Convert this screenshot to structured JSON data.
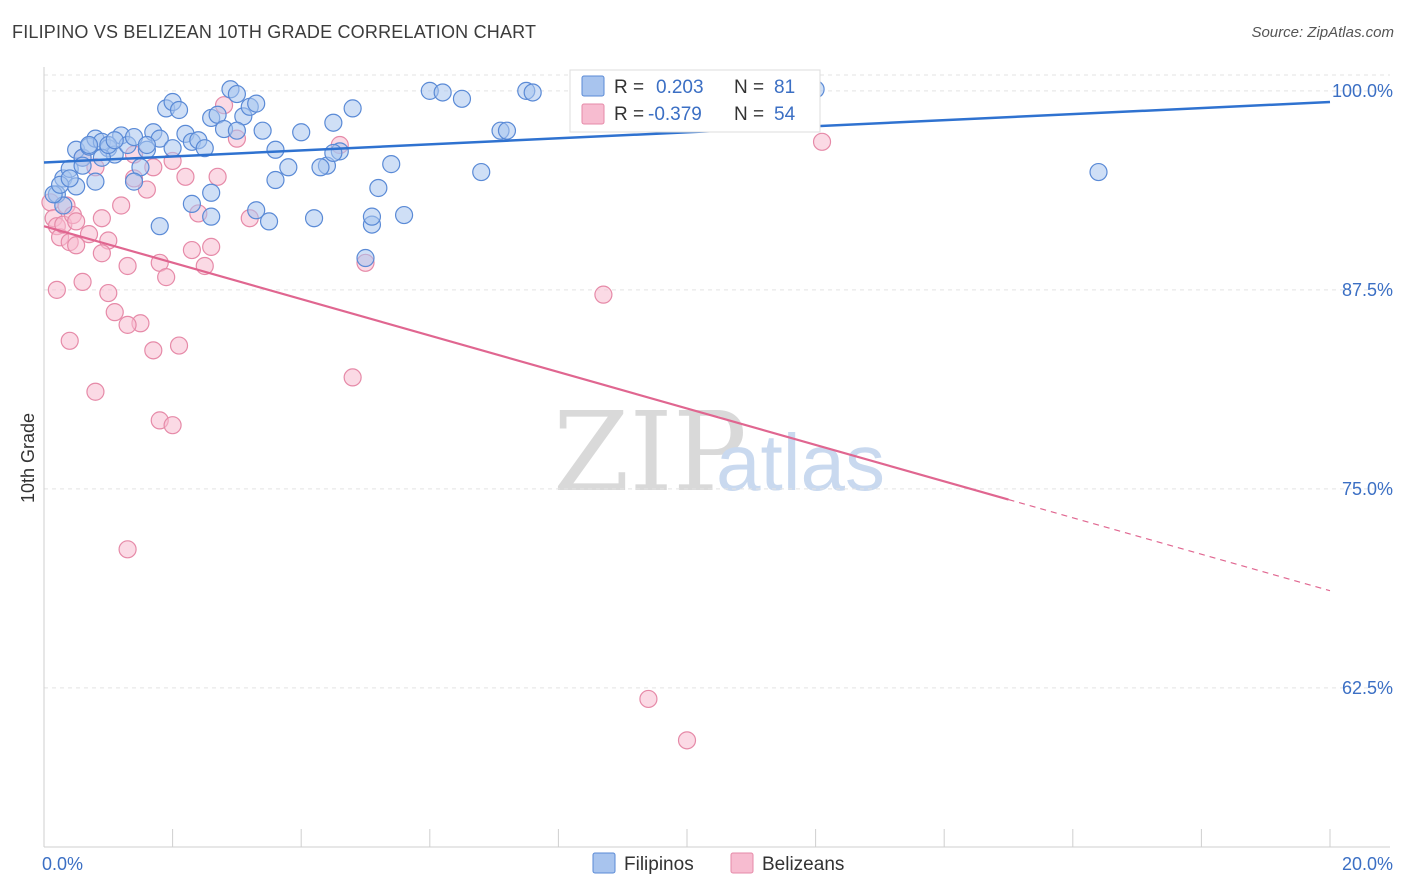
{
  "title": "FILIPINO VS BELIZEAN 10TH GRADE CORRELATION CHART",
  "source": "Source: ZipAtlas.com",
  "watermark": {
    "zip": "ZIP",
    "atlas": "atlas"
  },
  "legend_top": {
    "rows": [
      {
        "r_label": "R =",
        "r_value": "0.203",
        "n_label": "N =",
        "n_value": "81"
      },
      {
        "r_label": "R =",
        "r_value": "-0.379",
        "n_label": "N =",
        "n_value": "54"
      }
    ]
  },
  "legend_bottom": {
    "series": [
      "Filipinos",
      "Belizeans"
    ]
  },
  "colors": {
    "filipino_fill": "#a8c4ee",
    "filipino_stroke": "#5a8ad6",
    "filipino_line": "#2f72d0",
    "belizean_fill": "#f7bcd0",
    "belizean_stroke": "#e68aa8",
    "belizean_line": "#e06690",
    "tick_text": "#3b6fc4",
    "grid": "#e3e3e3"
  },
  "chart_data": {
    "type": "scatter",
    "title": "FILIPINO VS BELIZEAN 10TH GRADE CORRELATION CHART",
    "xlabel": "",
    "ylabel": "10th Grade",
    "xlim": [
      0,
      20
    ],
    "ylim": [
      52.5,
      101.5
    ],
    "x_tick_labels": [
      "0.0%",
      "20.0%"
    ],
    "y_ticks": [
      62.5,
      75.0,
      87.5,
      100.0
    ],
    "y_tick_labels": [
      "62.5%",
      "75.0%",
      "87.5%",
      "100.0%"
    ],
    "grid": true,
    "series": [
      {
        "name": "Filipinos",
        "R": 0.203,
        "N": 81,
        "trend": {
          "x": [
            0,
            20
          ],
          "y": [
            95.5,
            99.3
          ],
          "solid_until": 20
        },
        "points": [
          [
            0.3,
            94.5
          ],
          [
            0.4,
            95.1
          ],
          [
            0.5,
            96.3
          ],
          [
            0.6,
            95.8
          ],
          [
            0.7,
            96.5
          ],
          [
            0.8,
            97.0
          ],
          [
            0.9,
            96.8
          ],
          [
            1.0,
            96.4
          ],
          [
            1.1,
            96.0
          ],
          [
            1.2,
            97.2
          ],
          [
            1.3,
            96.6
          ],
          [
            1.4,
            97.1
          ],
          [
            1.5,
            95.2
          ],
          [
            1.6,
            96.3
          ],
          [
            1.7,
            97.4
          ],
          [
            1.8,
            97.0
          ],
          [
            1.9,
            98.9
          ],
          [
            2.0,
            99.3
          ],
          [
            2.1,
            98.8
          ],
          [
            2.2,
            97.3
          ],
          [
            2.3,
            96.8
          ],
          [
            2.4,
            96.9
          ],
          [
            2.5,
            96.4
          ],
          [
            2.6,
            98.3
          ],
          [
            2.7,
            98.5
          ],
          [
            2.8,
            97.6
          ],
          [
            2.9,
            100.1
          ],
          [
            3.0,
            99.8
          ],
          [
            3.1,
            98.4
          ],
          [
            3.2,
            99.0
          ],
          [
            3.3,
            99.2
          ],
          [
            3.4,
            97.5
          ],
          [
            3.6,
            96.3
          ],
          [
            3.8,
            95.2
          ],
          [
            4.0,
            97.4
          ],
          [
            4.2,
            92.0
          ],
          [
            4.4,
            95.3
          ],
          [
            4.5,
            98.0
          ],
          [
            4.6,
            96.2
          ],
          [
            4.8,
            98.9
          ],
          [
            5.0,
            89.5
          ],
          [
            5.1,
            91.6
          ],
          [
            5.2,
            93.9
          ],
          [
            5.4,
            95.4
          ],
          [
            5.6,
            92.2
          ],
          [
            6.0,
            100.0
          ],
          [
            6.2,
            99.9
          ],
          [
            6.5,
            99.5
          ],
          [
            6.8,
            94.9
          ],
          [
            7.1,
            97.5
          ],
          [
            7.2,
            97.5
          ],
          [
            7.5,
            100.0
          ],
          [
            7.6,
            99.9
          ],
          [
            12.0,
            100.1
          ],
          [
            16.4,
            94.9
          ],
          [
            0.2,
            93.5
          ],
          [
            0.3,
            92.8
          ],
          [
            0.5,
            94.0
          ],
          [
            0.6,
            95.3
          ],
          [
            0.7,
            96.6
          ],
          [
            0.8,
            94.3
          ],
          [
            0.9,
            95.8
          ],
          [
            1.0,
            96.6
          ],
          [
            1.1,
            96.9
          ],
          [
            1.4,
            94.3
          ],
          [
            1.6,
            96.6
          ],
          [
            1.8,
            91.5
          ],
          [
            2.0,
            96.4
          ],
          [
            2.3,
            92.9
          ],
          [
            2.6,
            93.6
          ],
          [
            2.6,
            92.1
          ],
          [
            3.0,
            97.5
          ],
          [
            3.3,
            92.5
          ],
          [
            3.5,
            91.8
          ],
          [
            3.6,
            94.4
          ],
          [
            4.3,
            95.2
          ],
          [
            4.5,
            96.1
          ],
          [
            5.1,
            92.1
          ],
          [
            0.15,
            93.5
          ],
          [
            0.25,
            94.1
          ],
          [
            0.4,
            94.5
          ]
        ]
      },
      {
        "name": "Belizeans",
        "R": -0.379,
        "N": 54,
        "trend": {
          "x": [
            0,
            20
          ],
          "y": [
            91.5,
            68.6
          ],
          "solid_until": 15.0
        },
        "points": [
          [
            0.1,
            93.0
          ],
          [
            0.15,
            92.0
          ],
          [
            0.2,
            91.5
          ],
          [
            0.25,
            90.8
          ],
          [
            0.3,
            91.6
          ],
          [
            0.35,
            92.8
          ],
          [
            0.4,
            90.5
          ],
          [
            0.45,
            92.2
          ],
          [
            0.5,
            90.3
          ],
          [
            0.6,
            88.0
          ],
          [
            0.6,
            95.8
          ],
          [
            0.7,
            91.0
          ],
          [
            0.8,
            95.2
          ],
          [
            0.9,
            92.0
          ],
          [
            1.0,
            90.6
          ],
          [
            1.1,
            86.1
          ],
          [
            1.2,
            92.8
          ],
          [
            1.3,
            89.0
          ],
          [
            1.4,
            94.5
          ],
          [
            1.5,
            85.4
          ],
          [
            1.6,
            93.8
          ],
          [
            1.7,
            95.2
          ],
          [
            1.8,
            89.2
          ],
          [
            1.9,
            88.3
          ],
          [
            2.0,
            95.6
          ],
          [
            2.1,
            84.0
          ],
          [
            2.2,
            94.6
          ],
          [
            2.3,
            90.0
          ],
          [
            2.4,
            92.3
          ],
          [
            2.5,
            89.0
          ],
          [
            2.6,
            90.2
          ],
          [
            2.7,
            94.6
          ],
          [
            2.8,
            99.1
          ],
          [
            3.0,
            97.0
          ],
          [
            3.2,
            92.0
          ],
          [
            0.2,
            87.5
          ],
          [
            0.4,
            84.3
          ],
          [
            0.8,
            81.1
          ],
          [
            1.0,
            87.3
          ],
          [
            1.3,
            85.3
          ],
          [
            1.7,
            83.7
          ],
          [
            1.8,
            79.3
          ],
          [
            2.0,
            79.0
          ],
          [
            1.3,
            71.2
          ],
          [
            1.4,
            96.0
          ],
          [
            4.6,
            96.6
          ],
          [
            4.8,
            82.0
          ],
          [
            5.0,
            89.2
          ],
          [
            8.7,
            87.2
          ],
          [
            9.4,
            61.8
          ],
          [
            10.0,
            59.2
          ],
          [
            12.1,
            96.8
          ],
          [
            0.5,
            91.8
          ],
          [
            0.9,
            89.8
          ]
        ]
      }
    ]
  }
}
